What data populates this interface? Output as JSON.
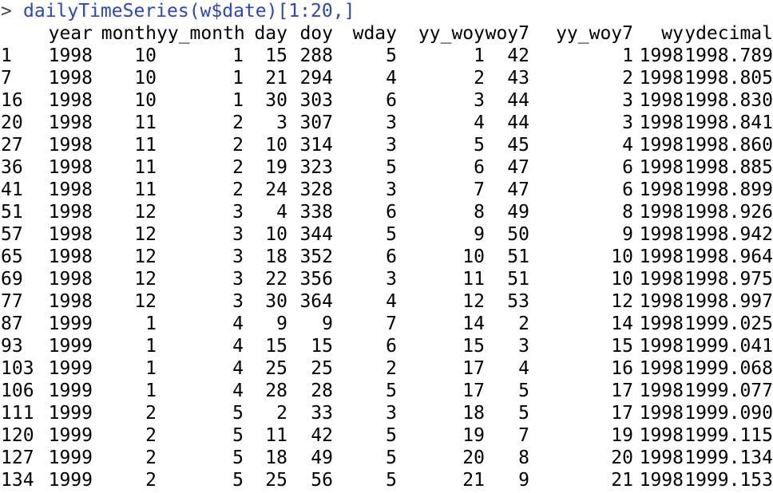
{
  "console": {
    "prompt": ">",
    "command": "dailyTimeSeries(w$date)[1:20,]"
  },
  "table": {
    "columns": [
      "year",
      "month",
      "yy_month",
      "day",
      "doy",
      "wday",
      "yy_woy",
      "woy7",
      "yy_woy7",
      "wy",
      "ydecimal"
    ],
    "rows": [
      {
        "name": "1",
        "values": [
          "1998",
          "10",
          "1",
          "15",
          "288",
          "5",
          "1",
          "42",
          "1",
          "1998",
          "1998.789"
        ]
      },
      {
        "name": "7",
        "values": [
          "1998",
          "10",
          "1",
          "21",
          "294",
          "4",
          "2",
          "43",
          "2",
          "1998",
          "1998.805"
        ]
      },
      {
        "name": "16",
        "values": [
          "1998",
          "10",
          "1",
          "30",
          "303",
          "6",
          "3",
          "44",
          "3",
          "1998",
          "1998.830"
        ]
      },
      {
        "name": "20",
        "values": [
          "1998",
          "11",
          "2",
          "3",
          "307",
          "3",
          "4",
          "44",
          "3",
          "1998",
          "1998.841"
        ]
      },
      {
        "name": "27",
        "values": [
          "1998",
          "11",
          "2",
          "10",
          "314",
          "3",
          "5",
          "45",
          "4",
          "1998",
          "1998.860"
        ]
      },
      {
        "name": "36",
        "values": [
          "1998",
          "11",
          "2",
          "19",
          "323",
          "5",
          "6",
          "47",
          "6",
          "1998",
          "1998.885"
        ]
      },
      {
        "name": "41",
        "values": [
          "1998",
          "11",
          "2",
          "24",
          "328",
          "3",
          "7",
          "47",
          "6",
          "1998",
          "1998.899"
        ]
      },
      {
        "name": "51",
        "values": [
          "1998",
          "12",
          "3",
          "4",
          "338",
          "6",
          "8",
          "49",
          "8",
          "1998",
          "1998.926"
        ]
      },
      {
        "name": "57",
        "values": [
          "1998",
          "12",
          "3",
          "10",
          "344",
          "5",
          "9",
          "50",
          "9",
          "1998",
          "1998.942"
        ]
      },
      {
        "name": "65",
        "values": [
          "1998",
          "12",
          "3",
          "18",
          "352",
          "6",
          "10",
          "51",
          "10",
          "1998",
          "1998.964"
        ]
      },
      {
        "name": "69",
        "values": [
          "1998",
          "12",
          "3",
          "22",
          "356",
          "3",
          "11",
          "51",
          "10",
          "1998",
          "1998.975"
        ]
      },
      {
        "name": "77",
        "values": [
          "1998",
          "12",
          "3",
          "30",
          "364",
          "4",
          "12",
          "53",
          "12",
          "1998",
          "1998.997"
        ]
      },
      {
        "name": "87",
        "values": [
          "1999",
          "1",
          "4",
          "9",
          "9",
          "7",
          "14",
          "2",
          "14",
          "1998",
          "1999.025"
        ]
      },
      {
        "name": "93",
        "values": [
          "1999",
          "1",
          "4",
          "15",
          "15",
          "6",
          "15",
          "3",
          "15",
          "1998",
          "1999.041"
        ]
      },
      {
        "name": "103",
        "values": [
          "1999",
          "1",
          "4",
          "25",
          "25",
          "2",
          "17",
          "4",
          "16",
          "1998",
          "1999.068"
        ]
      },
      {
        "name": "106",
        "values": [
          "1999",
          "1",
          "4",
          "28",
          "28",
          "5",
          "17",
          "5",
          "17",
          "1998",
          "1999.077"
        ]
      },
      {
        "name": "111",
        "values": [
          "1999",
          "2",
          "5",
          "2",
          "33",
          "3",
          "18",
          "5",
          "17",
          "1998",
          "1999.090"
        ]
      },
      {
        "name": "120",
        "values": [
          "1999",
          "2",
          "5",
          "11",
          "42",
          "5",
          "19",
          "7",
          "19",
          "1998",
          "1999.115"
        ]
      },
      {
        "name": "127",
        "values": [
          "1999",
          "2",
          "5",
          "18",
          "49",
          "5",
          "20",
          "8",
          "20",
          "1998",
          "1999.134"
        ]
      },
      {
        "name": "134",
        "values": [
          "1999",
          "2",
          "5",
          "25",
          "56",
          "5",
          "21",
          "9",
          "21",
          "1998",
          "1999.153"
        ]
      }
    ]
  },
  "colors": {
    "command": "#2a46c8",
    "prompt": "#444444",
    "text": "#000000",
    "background": "#ffffff"
  }
}
